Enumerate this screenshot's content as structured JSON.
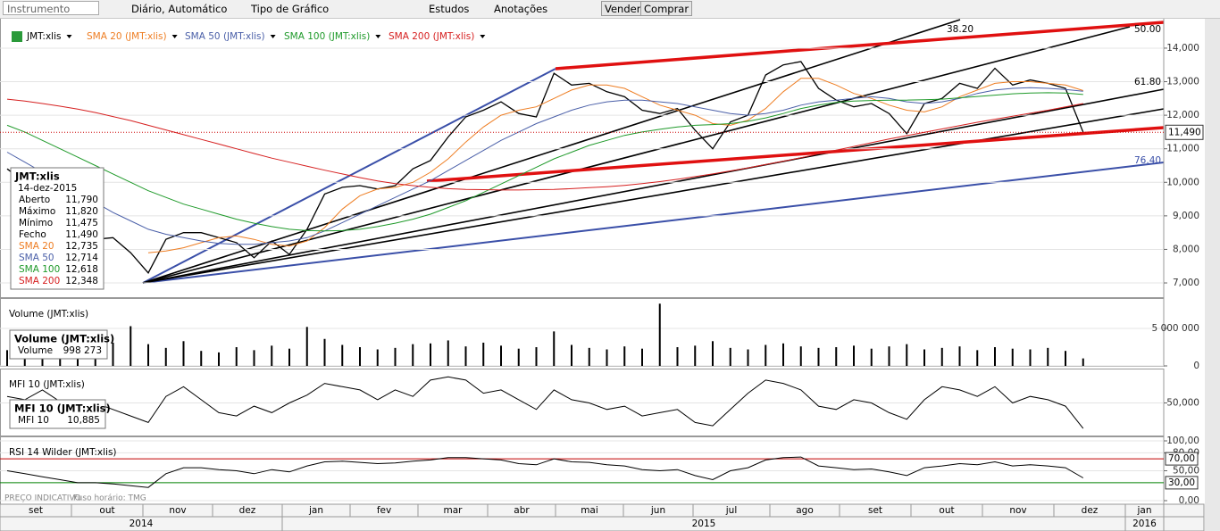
{
  "toolbar": {
    "instrument_placeholder": "Instrumento",
    "period": "Diário, Automático",
    "chart_type": "Tipo de Gráfico",
    "studies": "Estudos",
    "annotations": "Anotações",
    "sell": "Vender",
    "buy": "Comprar"
  },
  "chart_data": [
    {
      "type": "line",
      "ylim": [
        6575,
        14850
      ],
      "yticks": [
        {
          "value": 7000,
          "label": "7,000"
        },
        {
          "value": 8000,
          "label": "8,000"
        },
        {
          "value": 9000,
          "label": "9,000"
        },
        {
          "value": 10000,
          "label": "10,000"
        },
        {
          "value": 11000,
          "label": "11,000"
        },
        {
          "value": 12000,
          "label": "12,000"
        },
        {
          "value": 13000,
          "label": "13,000"
        },
        {
          "value": 14000,
          "label": "14,000"
        }
      ],
      "last_label": "11,490",
      "annotations": [
        "38.20",
        "50.00",
        "61.80",
        "76.40"
      ],
      "series": [
        {
          "name": "JMT:xlis",
          "color": "#000000",
          "values": [
            10400,
            10000,
            9500,
            9000,
            8600,
            8300,
            8350,
            7900,
            7300,
            8300,
            8500,
            8500,
            8350,
            8200,
            7750,
            8250,
            7850,
            8600,
            9650,
            9850,
            9900,
            9800,
            9900,
            10400,
            10650,
            11350,
            11950,
            12150,
            12400,
            12050,
            11950,
            13250,
            12900,
            12950,
            12700,
            12550,
            12150,
            12050,
            12200,
            11550,
            11000,
            11800,
            12000,
            13200,
            13500,
            13600,
            12800,
            12450,
            12250,
            12350,
            12050,
            11450,
            12350,
            12500,
            12950,
            12800,
            13400,
            12900,
            13050,
            12950,
            12800,
            11490
          ]
        },
        {
          "name": "SMA 20 (JMT:xlis)",
          "color": "#ee7d22",
          "values": [
            null,
            null,
            null,
            null,
            null,
            null,
            null,
            null,
            7900,
            7950,
            8050,
            8200,
            8350,
            8400,
            8300,
            8150,
            8100,
            8250,
            8650,
            9200,
            9600,
            9800,
            9850,
            10000,
            10300,
            10700,
            11200,
            11650,
            12000,
            12150,
            12250,
            12500,
            12750,
            12900,
            12900,
            12800,
            12550,
            12300,
            12150,
            12000,
            11750,
            11700,
            11850,
            12200,
            12700,
            13100,
            13100,
            12900,
            12650,
            12500,
            12300,
            12150,
            12100,
            12250,
            12550,
            12750,
            12950,
            13000,
            13000,
            12950,
            12900,
            12735
          ]
        },
        {
          "name": "SMA 50 (JMT:xlis)",
          "color": "#4a5fa8",
          "values": [
            10900,
            10600,
            10300,
            10000,
            9700,
            9400,
            9100,
            8850,
            8600,
            8450,
            8350,
            8250,
            8180,
            8150,
            8150,
            8200,
            8250,
            8350,
            8550,
            8800,
            9050,
            9300,
            9550,
            9800,
            10050,
            10350,
            10650,
            10950,
            11250,
            11500,
            11750,
            11950,
            12150,
            12300,
            12400,
            12450,
            12450,
            12400,
            12350,
            12250,
            12150,
            12050,
            12000,
            12050,
            12150,
            12300,
            12400,
            12450,
            12500,
            12550,
            12500,
            12400,
            12350,
            12400,
            12500,
            12650,
            12750,
            12800,
            12820,
            12800,
            12770,
            12714
          ]
        },
        {
          "name": "SMA 100 (JMT:xlis)",
          "color": "#1f9a2a",
          "values": [
            11700,
            11500,
            11250,
            11000,
            10750,
            10500,
            10250,
            10000,
            9750,
            9550,
            9350,
            9200,
            9050,
            8900,
            8780,
            8680,
            8600,
            8560,
            8550,
            8560,
            8600,
            8680,
            8780,
            8900,
            9050,
            9250,
            9450,
            9700,
            9950,
            10200,
            10450,
            10700,
            10900,
            11100,
            11250,
            11400,
            11500,
            11580,
            11650,
            11700,
            11720,
            11750,
            11820,
            11920,
            12050,
            12200,
            12300,
            12380,
            12420,
            12440,
            12450,
            12450,
            12460,
            12480,
            12520,
            12560,
            12600,
            12640,
            12660,
            12670,
            12660,
            12618
          ]
        },
        {
          "name": "SMA 200 (JMT:xlis)",
          "color": "#d62020",
          "values": [
            12480,
            12420,
            12350,
            12270,
            12180,
            12080,
            11960,
            11840,
            11700,
            11560,
            11420,
            11280,
            11140,
            11000,
            10860,
            10720,
            10600,
            10480,
            10360,
            10250,
            10140,
            10040,
            9960,
            9900,
            9850,
            9810,
            9790,
            9780,
            9770,
            9770,
            9780,
            9790,
            9810,
            9840,
            9870,
            9910,
            9960,
            10020,
            10090,
            10170,
            10250,
            10340,
            10430,
            10530,
            10630,
            10730,
            10850,
            10960,
            11070,
            11180,
            11290,
            11390,
            11490,
            11590,
            11690,
            11790,
            11880,
            11970,
            12060,
            12150,
            12250,
            12348
          ]
        }
      ]
    },
    {
      "type": "bar",
      "title": "Volume (JMT:xlis)",
      "ylim": [
        0,
        8810000
      ],
      "yticks": [
        0,
        {
          "value": 5000000,
          "label": "5 000 000"
        }
      ],
      "series": [
        {
          "name": "Volume",
          "color": "#000000",
          "values": [
            2100000,
            1800000,
            2400000,
            1900000,
            2600000,
            2200000,
            3100000,
            5300000,
            2900000,
            2400000,
            3300000,
            2000000,
            1800000,
            2500000,
            2100000,
            2700000,
            2300000,
            5200000,
            3600000,
            2800000,
            2500000,
            2200000,
            2400000,
            2900000,
            3000000,
            3400000,
            2600000,
            3100000,
            2700000,
            2300000,
            2500000,
            4600000,
            2800000,
            2400000,
            2200000,
            2600000,
            2300000,
            8300000,
            2500000,
            2700000,
            3300000,
            2400000,
            2200000,
            2800000,
            3000000,
            2600000,
            2400000,
            2500000,
            2700000,
            2300000,
            2600000,
            2900000,
            2200000,
            2400000,
            2600000,
            2100000,
            2500000,
            2300000,
            2200000,
            2400000,
            2000000,
            998273
          ]
        }
      ]
    },
    {
      "type": "line",
      "title": "MFI 10 (JMT:xlis)",
      "ylim": [
        0,
        100
      ],
      "yticks": [
        {
          "value": 50,
          "label": "50,000"
        }
      ],
      "series": [
        {
          "name": "MFI 10",
          "color": "#000000",
          "values": [
            60,
            55,
            70,
            52,
            45,
            50,
            40,
            30,
            20,
            60,
            75,
            55,
            35,
            30,
            45,
            35,
            50,
            62,
            80,
            75,
            70,
            55,
            70,
            60,
            85,
            90,
            85,
            65,
            70,
            55,
            40,
            70,
            55,
            50,
            40,
            45,
            30,
            35,
            40,
            20,
            15,
            40,
            65,
            85,
            80,
            70,
            45,
            40,
            55,
            50,
            35,
            25,
            55,
            75,
            70,
            60,
            75,
            50,
            60,
            55,
            45,
            10.885
          ]
        }
      ]
    },
    {
      "type": "line",
      "title": "RSI 14 Wilder (JMT:xlis)",
      "ylim": [
        -6,
        104.5
      ],
      "yticks": [
        {
          "value": 0,
          "label": "0,00"
        },
        {
          "value": 50,
          "label": "50,00"
        },
        {
          "value": 80,
          "label": "80,00"
        },
        {
          "value": 100,
          "label": "100,00"
        }
      ],
      "reference_lines": [
        {
          "value": 70,
          "label": "70,00",
          "color": "#c00000"
        },
        {
          "value": 30,
          "label": "30,00",
          "color": "#008000"
        }
      ],
      "series": [
        {
          "name": "RSI 14",
          "color": "#000000",
          "values": [
            50,
            45,
            40,
            35,
            30,
            30,
            28,
            25,
            22,
            45,
            55,
            55,
            52,
            50,
            45,
            52,
            48,
            58,
            65,
            66,
            64,
            62,
            63,
            66,
            68,
            72,
            72,
            70,
            68,
            62,
            60,
            70,
            65,
            64,
            60,
            58,
            52,
            50,
            52,
            42,
            35,
            50,
            55,
            68,
            72,
            73,
            58,
            55,
            52,
            53,
            48,
            42,
            55,
            58,
            62,
            60,
            65,
            58,
            60,
            58,
            55,
            38
          ]
        }
      ]
    }
  ],
  "readouts": [
    {
      "title": "JMT:xlis",
      "date": "14-dez-2015",
      "rows": [
        [
          "Aberto",
          "11,790"
        ],
        [
          "Máximo",
          "11,820"
        ],
        [
          "Mínimo",
          "11,475"
        ],
        [
          "Fecho",
          "11,490"
        ],
        [
          "SMA 20",
          "12,735"
        ],
        [
          "SMA 50",
          "12,714"
        ],
        [
          "SMA 100",
          "12,618"
        ],
        [
          "SMA 200",
          "12,348"
        ]
      ]
    },
    {
      "title": "Volume (JMT:xlis)",
      "rows": [
        [
          "Volume",
          "998 273"
        ]
      ]
    },
    {
      "title": "MFI 10 (JMT:xlis)",
      "rows": [
        [
          "MFI 10",
          "10,885"
        ]
      ]
    }
  ],
  "footer": {
    "notice": "PREÇO INDICATIVO",
    "timezone": "Fuso horário: TMG"
  },
  "x_axis": {
    "months": [
      "set",
      "out",
      "nov",
      "dez",
      "jan",
      "fev",
      "mar",
      "abr",
      "mai",
      "jun",
      "jul",
      "ago",
      "set",
      "out",
      "nov",
      "dez",
      "jan"
    ],
    "years": [
      "2014",
      "2015",
      "2016"
    ]
  }
}
